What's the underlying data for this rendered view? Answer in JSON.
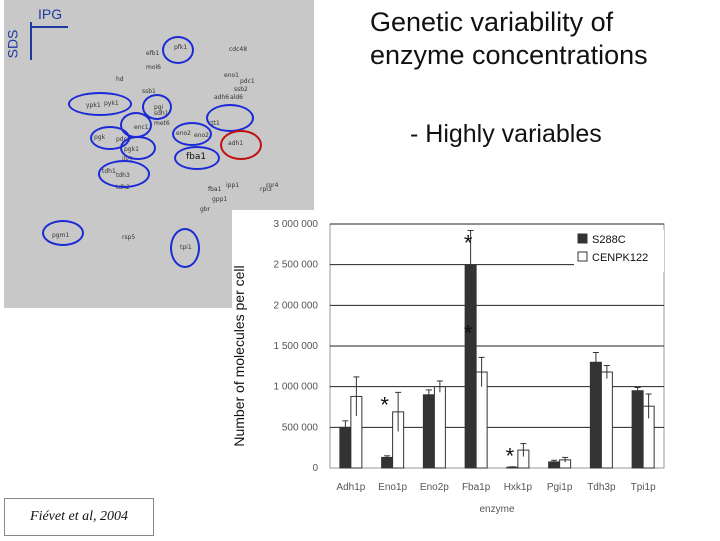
{
  "slide": {
    "title_line1": "Genetic variability of",
    "title_line2": "enzyme concentrations",
    "subtitle": "- Highly variables",
    "citation": "Fiévet et al, 2004"
  },
  "gel": {
    "axis_ipg": "IPG",
    "axis_sds": "SDS",
    "highlight_label": "fba1",
    "spot_labels": [
      "pfk1",
      "efb1",
      "cdc48",
      "mol6",
      "hd",
      "eno1",
      "ssb1",
      "pdc1",
      "ssb2",
      "ypk1",
      "pyk1",
      "pgi",
      "adh6",
      "ald6",
      "enc1",
      "eno2",
      "pgk",
      "pdc1",
      "eno2",
      "sdh1",
      "pgk1",
      "tdh1",
      "tdh2",
      "met6",
      "tdh3",
      "ilv5",
      "adh1",
      "ctt1",
      "pgm1",
      "tpi1",
      "rsp5",
      "gpp1",
      "rnr4",
      "fba1",
      "ipp1",
      "rpl3",
      "gbr"
    ]
  },
  "chart_data": {
    "type": "bar",
    "ylabel": "Number of molecules per cell",
    "xlabel": "enzyme",
    "ylim": [
      0,
      3000000
    ],
    "yticks": [
      0,
      500000,
      1000000,
      1500000,
      2000000,
      2500000,
      3000000
    ],
    "ytick_labels": [
      "0",
      "500 000",
      "1 000 000",
      "1 500 000",
      "2 000 000",
      "2 500 000",
      "3 000 000"
    ],
    "categories": [
      "Adh1p",
      "Eno1p",
      "Eno2p",
      "Fba1p",
      "Hxk1p",
      "Pgi1p",
      "Tdh3p",
      "Tpi1p"
    ],
    "series": [
      {
        "name": "S288C",
        "color": "#333333",
        "values": [
          500000,
          130000,
          900000,
          2500000,
          10000,
          75000,
          1300000,
          950000
        ],
        "errors": [
          80000,
          20000,
          60000,
          420000,
          5000,
          20000,
          120000,
          40000
        ]
      },
      {
        "name": "CENPK122",
        "color": "#ffffff",
        "values": [
          880000,
          690000,
          1000000,
          1180000,
          220000,
          100000,
          1180000,
          760000
        ],
        "errors": [
          240000,
          240000,
          70000,
          180000,
          80000,
          30000,
          80000,
          150000
        ]
      }
    ],
    "grid": true,
    "legend": "top-right",
    "annotations": [
      {
        "text": "*",
        "category": "Eno1p"
      },
      {
        "text": "*",
        "category": "Fba1p"
      },
      {
        "text": "*",
        "category": "Fba1p"
      },
      {
        "text": "*",
        "category": "Hxk1p"
      }
    ]
  }
}
